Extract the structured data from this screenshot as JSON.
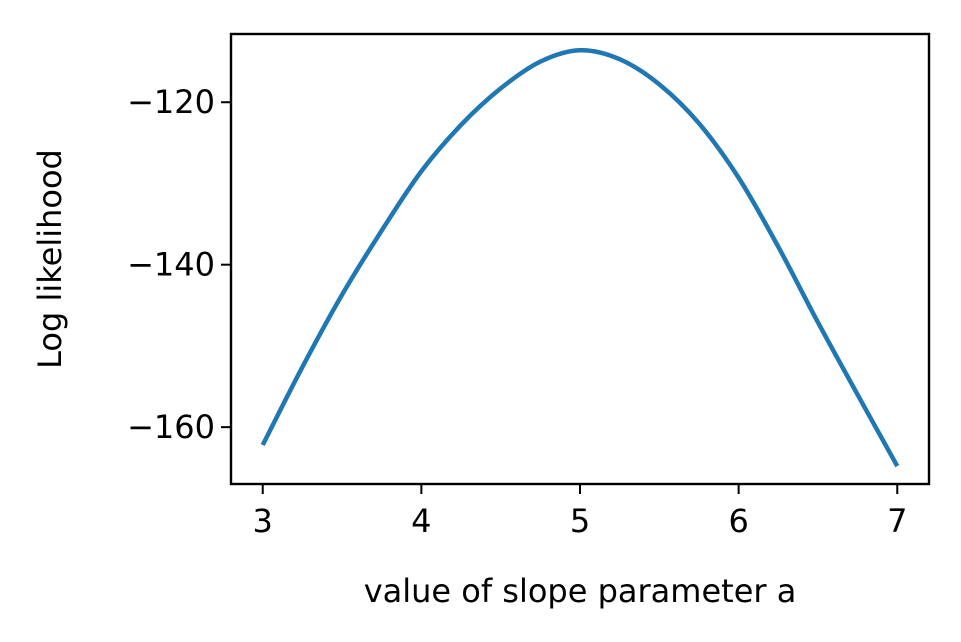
{
  "chart_data": {
    "type": "line",
    "title": "",
    "xlabel": "value of slope parameter a",
    "ylabel": "Log likelihood",
    "xlim": [
      2.8,
      7.2
    ],
    "ylim": [
      -167,
      -111.6
    ],
    "xticks": [
      3,
      4,
      5,
      6,
      7
    ],
    "xtick_labels": [
      "3",
      "4",
      "5",
      "6",
      "7"
    ],
    "yticks": [
      -160,
      -140,
      -120
    ],
    "ytick_labels": [
      "−160",
      "−140",
      "−120"
    ],
    "grid": false,
    "legend": false,
    "series": [
      {
        "color": "#1f77b4",
        "x": [
          3.0,
          3.25,
          3.5,
          3.75,
          4.0,
          4.25,
          4.5,
          4.75,
          5.0,
          5.25,
          5.5,
          5.75,
          6.0,
          6.25,
          6.5,
          6.75,
          7.0
        ],
        "y": [
          -162.2,
          -152.6,
          -143.7,
          -135.8,
          -128.5,
          -122.8,
          -118.3,
          -115.0,
          -113.6,
          -114.7,
          -117.8,
          -122.6,
          -129.3,
          -137.8,
          -147.1,
          -156.0,
          -164.8
        ]
      }
    ]
  }
}
